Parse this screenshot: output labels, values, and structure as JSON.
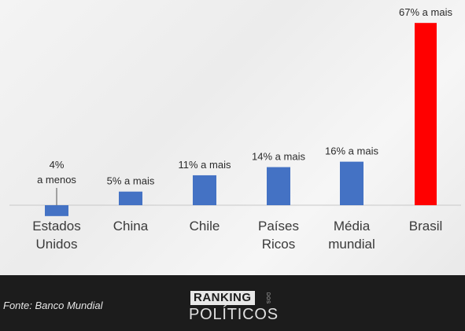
{
  "chart_data": {
    "type": "bar",
    "categories": [
      [
        "Estados",
        "Unidos"
      ],
      [
        "China"
      ],
      [
        "Chile"
      ],
      [
        "Países",
        "Ricos"
      ],
      [
        "Média",
        "mundial"
      ],
      [
        "Brasil"
      ]
    ],
    "values": [
      -4,
      5,
      11,
      14,
      16,
      67
    ],
    "data_labels": [
      [
        "4%",
        "a menos"
      ],
      [
        "5% a mais"
      ],
      [
        "11% a mais"
      ],
      [
        "14% a mais"
      ],
      [
        "16% a mais"
      ],
      [
        "67% a mais"
      ]
    ],
    "bar_colors": [
      "#4472c4",
      "#4472c4",
      "#4472c4",
      "#4472c4",
      "#4472c4",
      "#ff0000"
    ],
    "ylim": [
      -5,
      70
    ],
    "grid": false,
    "title": "",
    "xlabel": "",
    "ylabel": ""
  },
  "footer": {
    "source": "Fonte: Banco Mundial",
    "brand_top": "RANKING",
    "brand_dos": "DOS",
    "brand_bottom": "POLÍTICOS"
  },
  "colors": {
    "baseline": "#c8c8c8",
    "label_text": "#2a2a2a",
    "category_text": "#3a3a3a"
  }
}
